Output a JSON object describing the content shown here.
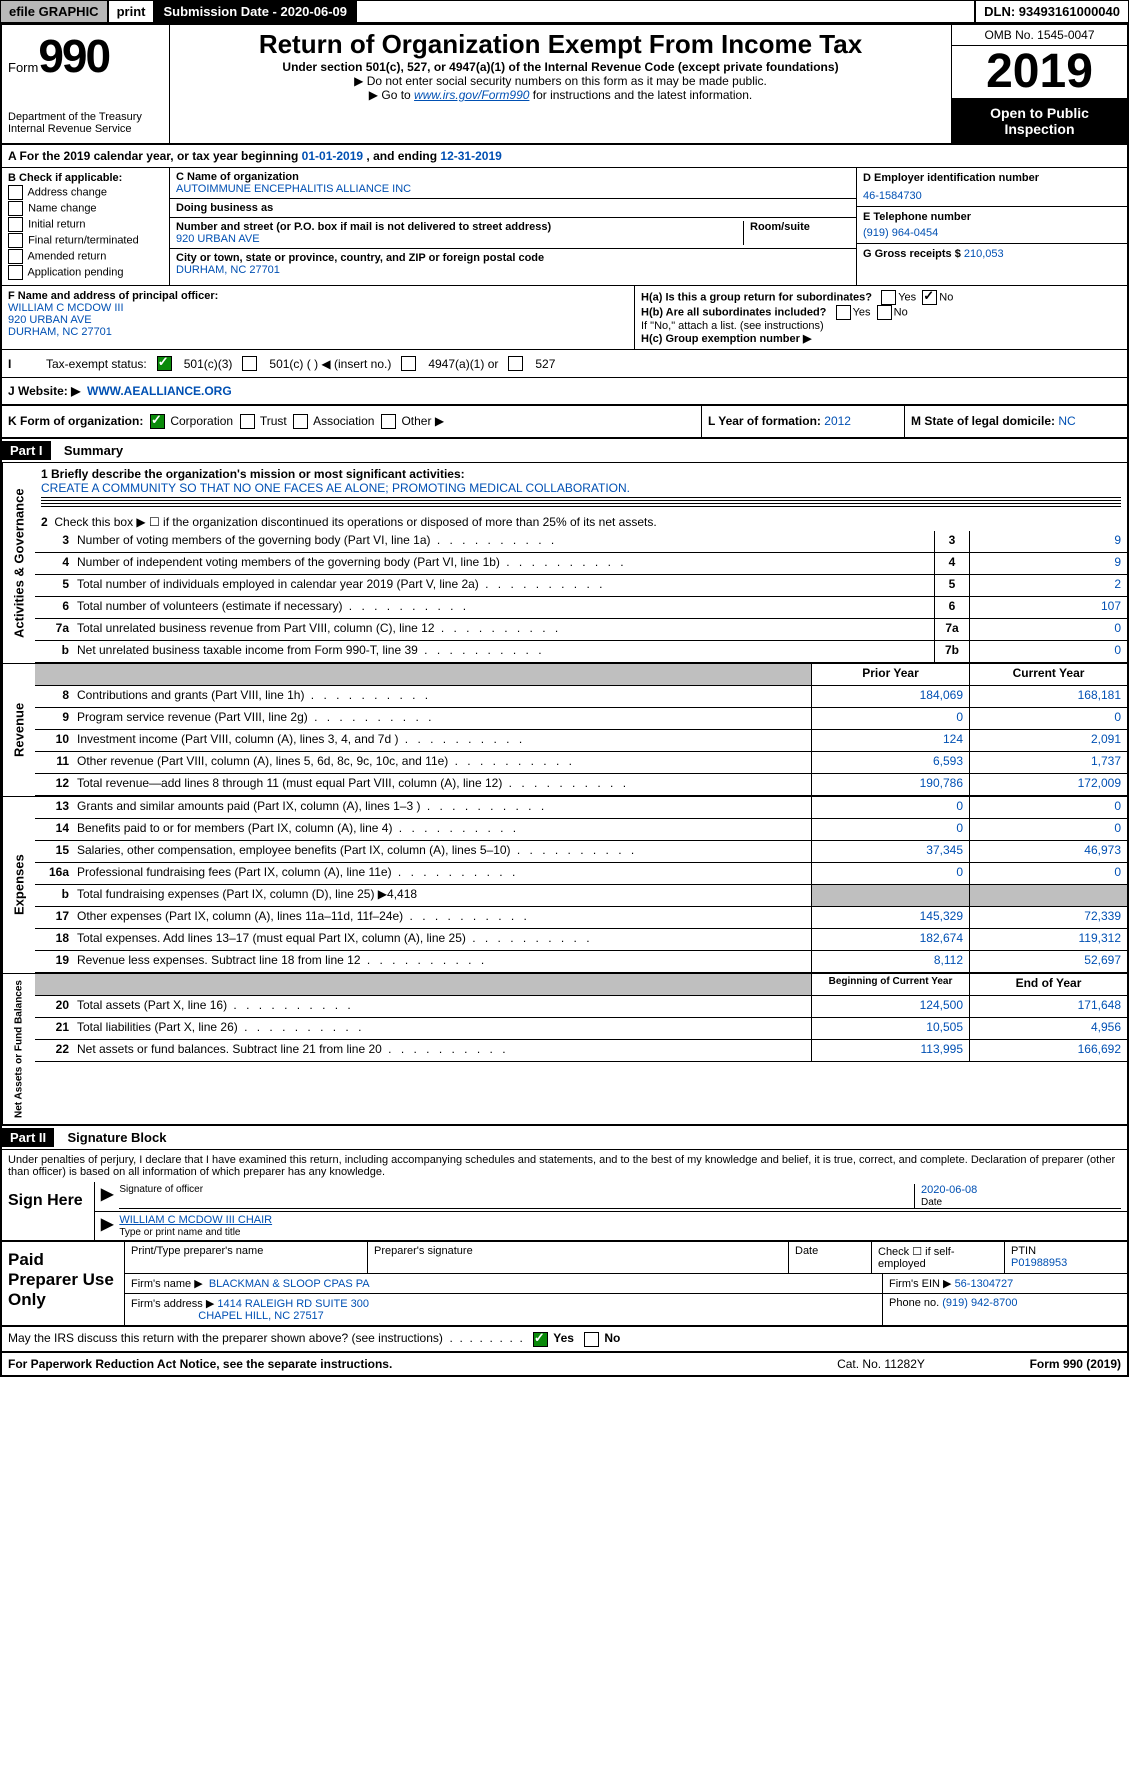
{
  "topbar": {
    "efile": "efile GRAPHIC",
    "print": "print",
    "sub_label": "Submission Date - 2020-06-09",
    "dln": "DLN: 93493161000040"
  },
  "header": {
    "form_word": "Form",
    "form_num": "990",
    "dept": "Department of the Treasury\nInternal Revenue Service",
    "title": "Return of Organization Exempt From Income Tax",
    "subtitle": "Under section 501(c), 527, or 4947(a)(1) of the Internal Revenue Code (except private foundations)",
    "note1": "▶ Do not enter social security numbers on this form as it may be made public.",
    "note2_pre": "▶ Go to ",
    "note2_link": "www.irs.gov/Form990",
    "note2_post": " for instructions and the latest information.",
    "omb": "OMB No. 1545-0047",
    "year": "2019",
    "open": "Open to Public Inspection"
  },
  "row_a": {
    "text_pre": "A For the 2019 calendar year, or tax year beginning ",
    "begin": "01-01-2019",
    "mid": " , and ending ",
    "end": "12-31-2019"
  },
  "section_b": {
    "label": "B Check if applicable:",
    "opts": [
      "Address change",
      "Name change",
      "Initial return",
      "Final return/terminated",
      "Amended return",
      "Application pending"
    ]
  },
  "section_c": {
    "name_label": "C Name of organization",
    "name": "AUTOIMMUNE ENCEPHALITIS ALLIANCE INC",
    "dba_label": "Doing business as",
    "addr_label": "Number and street (or P.O. box if mail is not delivered to street address)",
    "room_label": "Room/suite",
    "addr": "920 URBAN AVE",
    "city_label": "City or town, state or province, country, and ZIP or foreign postal code",
    "city": "DURHAM, NC  27701"
  },
  "section_d": {
    "label": "D Employer identification number",
    "value": "46-1584730"
  },
  "section_e": {
    "label": "E Telephone number",
    "value": "(919) 964-0454"
  },
  "section_g": {
    "label": "G Gross receipts $",
    "value": "210,053"
  },
  "section_f": {
    "label": "F  Name and address of principal officer:",
    "name": "WILLIAM C MCDOW III",
    "addr1": "920 URBAN AVE",
    "addr2": "DURHAM, NC  27701"
  },
  "section_h": {
    "ha": "H(a)  Is this a group return for subordinates?",
    "hb": "H(b)  Are all subordinates included?",
    "hb_note": "If \"No,\" attach a list. (see instructions)",
    "hc": "H(c)  Group exemption number ▶",
    "yes": "Yes",
    "no": "No"
  },
  "tax_status": {
    "label": "Tax-exempt status:",
    "o1": "501(c)(3)",
    "o2": "501(c) (  ) ◀ (insert no.)",
    "o3": "4947(a)(1) or",
    "o4": "527"
  },
  "section_j": {
    "label": "J    Website: ▶",
    "value": "WWW.AEALLIANCE.ORG"
  },
  "section_k": {
    "label": "K Form of organization:",
    "corp": "Corporation",
    "trust": "Trust",
    "assoc": "Association",
    "other": "Other ▶"
  },
  "section_l": {
    "label": "L Year of formation:",
    "value": "2012"
  },
  "section_m": {
    "label": "M State of legal domicile:",
    "value": "NC"
  },
  "part1": {
    "hdr": "Part I",
    "title": "Summary",
    "side1": "Activities & Governance",
    "l1_label": "1  Briefly describe the organization's mission or most significant activities:",
    "l1_text": "CREATE A COMMUNITY SO THAT NO ONE FACES AE ALONE; PROMOTING MEDICAL COLLABORATION.",
    "l2": "Check this box ▶ ☐  if the organization discontinued its operations or disposed of more than 25% of its net assets.",
    "lines_gov": [
      {
        "n": "3",
        "t": "Number of voting members of the governing body (Part VI, line 1a)",
        "box": "3",
        "v": "9"
      },
      {
        "n": "4",
        "t": "Number of independent voting members of the governing body (Part VI, line 1b)",
        "box": "4",
        "v": "9"
      },
      {
        "n": "5",
        "t": "Total number of individuals employed in calendar year 2019 (Part V, line 2a)",
        "box": "5",
        "v": "2"
      },
      {
        "n": "6",
        "t": "Total number of volunteers (estimate if necessary)",
        "box": "6",
        "v": "107"
      },
      {
        "n": "7a",
        "t": "Total unrelated business revenue from Part VIII, column (C), line 12",
        "box": "7a",
        "v": "0"
      },
      {
        "n": "b",
        "t": "Net unrelated business taxable income from Form 990-T, line 39",
        "box": "7b",
        "v": "0"
      }
    ],
    "side2": "Revenue",
    "col_prior": "Prior Year",
    "col_current": "Current Year",
    "lines_rev": [
      {
        "n": "8",
        "t": "Contributions and grants (Part VIII, line 1h)",
        "p": "184,069",
        "c": "168,181"
      },
      {
        "n": "9",
        "t": "Program service revenue (Part VIII, line 2g)",
        "p": "0",
        "c": "0"
      },
      {
        "n": "10",
        "t": "Investment income (Part VIII, column (A), lines 3, 4, and 7d )",
        "p": "124",
        "c": "2,091"
      },
      {
        "n": "11",
        "t": "Other revenue (Part VIII, column (A), lines 5, 6d, 8c, 9c, 10c, and 11e)",
        "p": "6,593",
        "c": "1,737"
      },
      {
        "n": "12",
        "t": "Total revenue—add lines 8 through 11 (must equal Part VIII, column (A), line 12)",
        "p": "190,786",
        "c": "172,009"
      }
    ],
    "side3": "Expenses",
    "lines_exp": [
      {
        "n": "13",
        "t": "Grants and similar amounts paid (Part IX, column (A), lines 1–3 )",
        "p": "0",
        "c": "0"
      },
      {
        "n": "14",
        "t": "Benefits paid to or for members (Part IX, column (A), line 4)",
        "p": "0",
        "c": "0"
      },
      {
        "n": "15",
        "t": "Salaries, other compensation, employee benefits (Part IX, column (A), lines 5–10)",
        "p": "37,345",
        "c": "46,973"
      },
      {
        "n": "16a",
        "t": "Professional fundraising fees (Part IX, column (A), line 11e)",
        "p": "0",
        "c": "0"
      },
      {
        "n": "b",
        "t": "Total fundraising expenses (Part IX, column (D), line 25) ▶4,418",
        "p": "",
        "c": "",
        "shade": true
      },
      {
        "n": "17",
        "t": "Other expenses (Part IX, column (A), lines 11a–11d, 11f–24e)",
        "p": "145,329",
        "c": "72,339"
      },
      {
        "n": "18",
        "t": "Total expenses. Add lines 13–17 (must equal Part IX, column (A), line 25)",
        "p": "182,674",
        "c": "119,312"
      },
      {
        "n": "19",
        "t": "Revenue less expenses. Subtract line 18 from line 12",
        "p": "8,112",
        "c": "52,697"
      }
    ],
    "side4": "Net Assets or Fund Balances",
    "col_begin": "Beginning of Current Year",
    "col_end": "End of Year",
    "lines_net": [
      {
        "n": "20",
        "t": "Total assets (Part X, line 16)",
        "p": "124,500",
        "c": "171,648"
      },
      {
        "n": "21",
        "t": "Total liabilities (Part X, line 26)",
        "p": "10,505",
        "c": "4,956"
      },
      {
        "n": "22",
        "t": "Net assets or fund balances. Subtract line 21 from line 20",
        "p": "113,995",
        "c": "166,692"
      }
    ]
  },
  "part2": {
    "hdr": "Part II",
    "title": "Signature Block",
    "decl": "Under penalties of perjury, I declare that I have examined this return, including accompanying schedules and statements, and to the best of my knowledge and belief, it is true, correct, and complete. Declaration of preparer (other than officer) is based on all information of which preparer has any knowledge.",
    "sign_here": "Sign Here",
    "sig_officer": "Signature of officer",
    "sig_date": "2020-06-08",
    "date_lbl": "Date",
    "officer_name": "WILLIAM C MCDOW III CHAIR",
    "type_name": "Type or print name and title",
    "paid": "Paid Preparer Use Only",
    "prep_name_lbl": "Print/Type preparer's name",
    "prep_sig_lbl": "Preparer's signature",
    "check_self": "Check ☐ if self-employed",
    "ptin_lbl": "PTIN",
    "ptin": "P01988953",
    "firm_name_lbl": "Firm's name    ▶",
    "firm_name": "BLACKMAN & SLOOP CPAS PA",
    "firm_ein_lbl": "Firm's EIN ▶",
    "firm_ein": "56-1304727",
    "firm_addr_lbl": "Firm's address ▶",
    "firm_addr1": "1414 RALEIGH RD SUITE 300",
    "firm_addr2": "CHAPEL HILL, NC  27517",
    "phone_lbl": "Phone no.",
    "phone": "(919) 942-8700",
    "discuss": "May the IRS discuss this return with the preparer shown above? (see instructions)",
    "yes": "Yes",
    "no": "No"
  },
  "footer": {
    "left": "For Paperwork Reduction Act Notice, see the separate instructions.",
    "mid": "Cat. No. 11282Y",
    "right": "Form 990 (2019)"
  }
}
